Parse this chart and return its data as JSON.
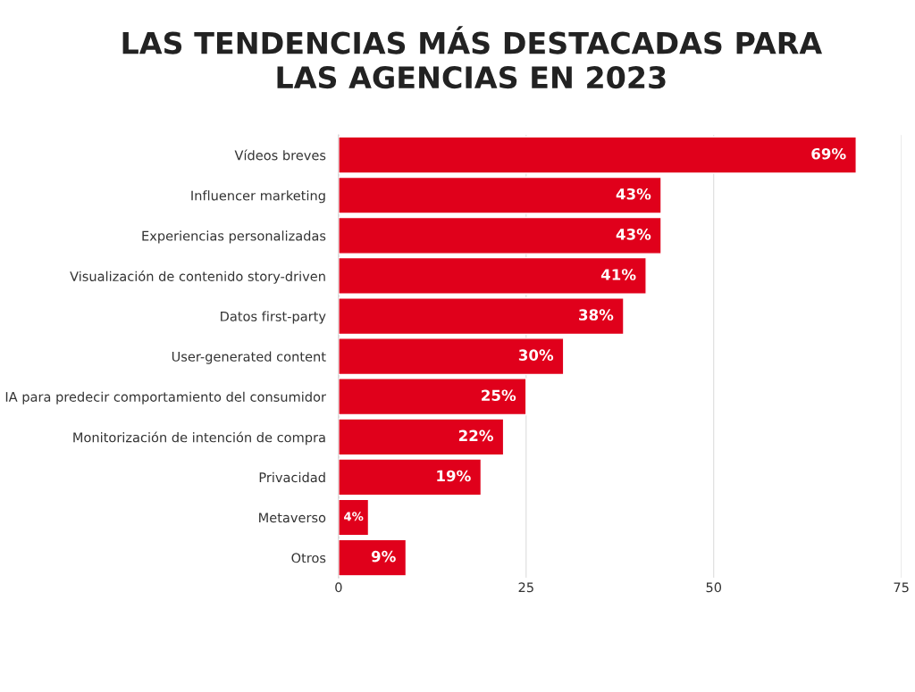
{
  "chart_data": {
    "type": "bar",
    "orientation": "horizontal",
    "title": "LAS TENDENCIAS MÁS DESTACADAS PARA\nLAS AGENCIAS EN 2023",
    "categories": [
      "Vídeos breves",
      "Influencer marketing",
      "Experiencias personalizadas",
      "Visualización de contenido story-driven",
      "Datos first-party",
      "User-generated content",
      "IA para predecir comportamiento del consumidor",
      "Monitorización de intención de compra",
      "Privacidad",
      "Metaverso",
      "Otros"
    ],
    "values": [
      69,
      43,
      43,
      41,
      38,
      30,
      25,
      22,
      19,
      4,
      9
    ],
    "value_labels": [
      "69%",
      "43%",
      "43%",
      "41%",
      "38%",
      "30%",
      "25%",
      "22%",
      "19%",
      "4%",
      "9%"
    ],
    "color": "#e0001b",
    "xlim": [
      0,
      75
    ],
    "xticks": [
      0,
      25,
      50,
      75
    ],
    "grid": "x"
  }
}
